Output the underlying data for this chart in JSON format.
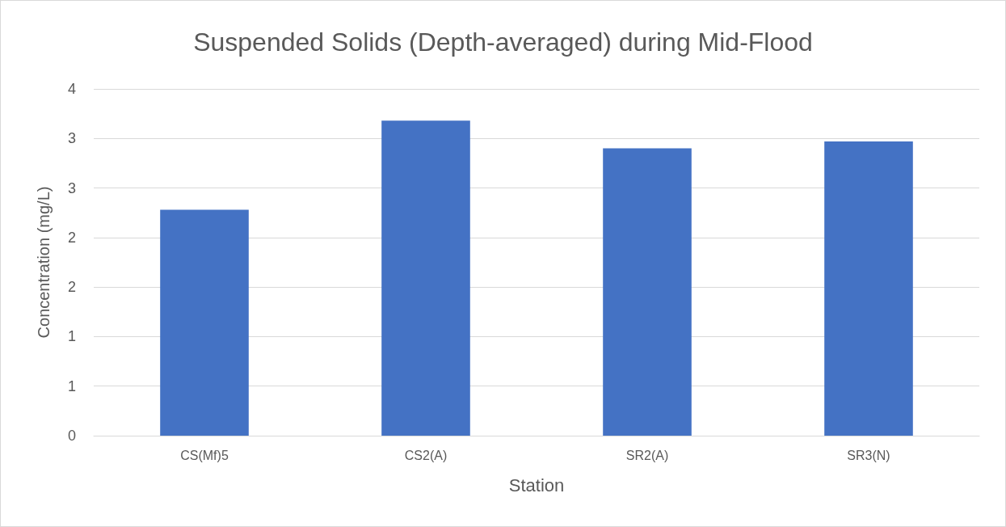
{
  "chart_data": {
    "type": "bar",
    "title": "Suspended Solids (Depth-averaged) during Mid-Flood",
    "xlabel": "Station",
    "ylabel": "Concentration (mg/L)",
    "categories": [
      "CS(Mf)5",
      "CS2(A)",
      "SR2(A)",
      "SR3(N)"
    ],
    "values": [
      2.28,
      3.18,
      2.9,
      2.97
    ],
    "color": "#4472c4",
    "ylim": [
      0,
      3.5
    ],
    "yticks": [
      0,
      {
        "value": 0.5,
        "label": "1"
      },
      1,
      {
        "value": 1.5,
        "label": "2"
      },
      2,
      {
        "value": 2.5,
        "label": "3"
      },
      3,
      {
        "value": 3.5,
        "label": "4"
      }
    ],
    "grid": "y"
  }
}
